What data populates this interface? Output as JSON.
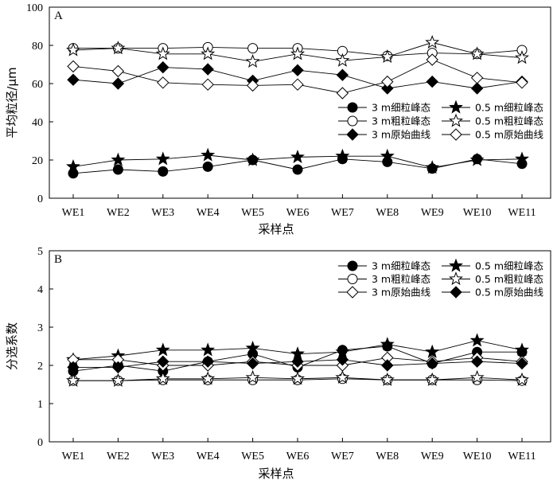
{
  "chart_data": [
    {
      "type": "line",
      "panel_label": "A",
      "ylabel": "平均粒径/μm",
      "xlabel": "采样点",
      "categories": [
        "WE1",
        "WE2",
        "WE3",
        "WE4",
        "WE5",
        "WE6",
        "WE7",
        "WE8",
        "WE9",
        "WE10",
        "WE11"
      ],
      "ylim": [
        0,
        100
      ],
      "yticks": [
        0,
        20,
        40,
        60,
        80,
        100
      ],
      "grid": false,
      "legend_position": "bottom-right",
      "series": [
        {
          "name": "3 m细粒峰态",
          "marker": "circle-filled",
          "values": [
            13,
            15,
            14,
            16.5,
            20,
            15,
            20.5,
            19,
            15.5,
            20.5,
            18
          ]
        },
        {
          "name": "0.5 m细粒峰态",
          "marker": "star-filled",
          "values": [
            16.5,
            20,
            20.5,
            22.5,
            20,
            21.5,
            22,
            22,
            16,
            20,
            20.5
          ]
        },
        {
          "name": "3 m粗粒峰态",
          "marker": "circle-open",
          "values": [
            78.5,
            78.5,
            78.5,
            79,
            78.5,
            78.5,
            77,
            74.5,
            76,
            75.5,
            77.5
          ]
        },
        {
          "name": "0.5 m粗粒峰态",
          "marker": "star-open",
          "values": [
            77.5,
            78.5,
            75.5,
            75.5,
            71.5,
            75.5,
            72,
            74,
            81.5,
            75.5,
            73.5
          ]
        },
        {
          "name": "3 m原始曲线",
          "marker": "diamond-filled",
          "values": [
            62,
            60,
            68.5,
            67.5,
            61.5,
            67,
            64.5,
            57.5,
            61,
            57.5,
            61
          ]
        },
        {
          "name": "0.5 m原始曲线",
          "marker": "diamond-open",
          "values": [
            69,
            66.5,
            60.5,
            59.5,
            59,
            59.5,
            55,
            61,
            72.5,
            63,
            60.5
          ]
        }
      ]
    },
    {
      "type": "line",
      "panel_label": "B",
      "ylabel": "分选系数",
      "xlabel": "采样点",
      "categories": [
        "WE1",
        "WE2",
        "WE3",
        "WE4",
        "WE5",
        "WE6",
        "WE7",
        "WE8",
        "WE9",
        "WE10",
        "WE11"
      ],
      "ylim": [
        0,
        5
      ],
      "yticks": [
        0,
        1,
        2,
        3,
        4,
        5
      ],
      "grid": false,
      "legend_position": "top-right",
      "series": [
        {
          "name": "3 m细粒峰态",
          "marker": "circle-filled",
          "values": [
            1.85,
            2.0,
            1.85,
            2.1,
            2.3,
            1.95,
            2.4,
            2.5,
            2.05,
            2.35,
            2.35
          ]
        },
        {
          "name": "0.5 m细粒峰态",
          "marker": "star-filled",
          "values": [
            2.15,
            2.25,
            2.4,
            2.4,
            2.45,
            2.3,
            2.35,
            2.55,
            2.35,
            2.65,
            2.4
          ]
        },
        {
          "name": "3 m粗粒峰态",
          "marker": "circle-open",
          "values": [
            1.6,
            1.6,
            1.62,
            1.62,
            1.62,
            1.62,
            1.65,
            1.62,
            1.62,
            1.62,
            1.6
          ]
        },
        {
          "name": "0.5 m粗粒峰态",
          "marker": "star-open",
          "values": [
            1.6,
            1.6,
            1.65,
            1.65,
            1.68,
            1.65,
            1.68,
            1.62,
            1.62,
            1.68,
            1.62
          ]
        },
        {
          "name": "3 m原始曲线",
          "marker": "diamond-open",
          "values": [
            2.15,
            2.15,
            2.0,
            2.0,
            2.1,
            2.0,
            2.0,
            2.2,
            2.1,
            2.2,
            2.1
          ]
        },
        {
          "name": "0.5 m原始曲线",
          "marker": "diamond-filled",
          "values": [
            1.95,
            1.95,
            2.1,
            2.1,
            2.05,
            2.1,
            2.15,
            2.0,
            2.05,
            2.1,
            2.05
          ]
        }
      ]
    }
  ]
}
